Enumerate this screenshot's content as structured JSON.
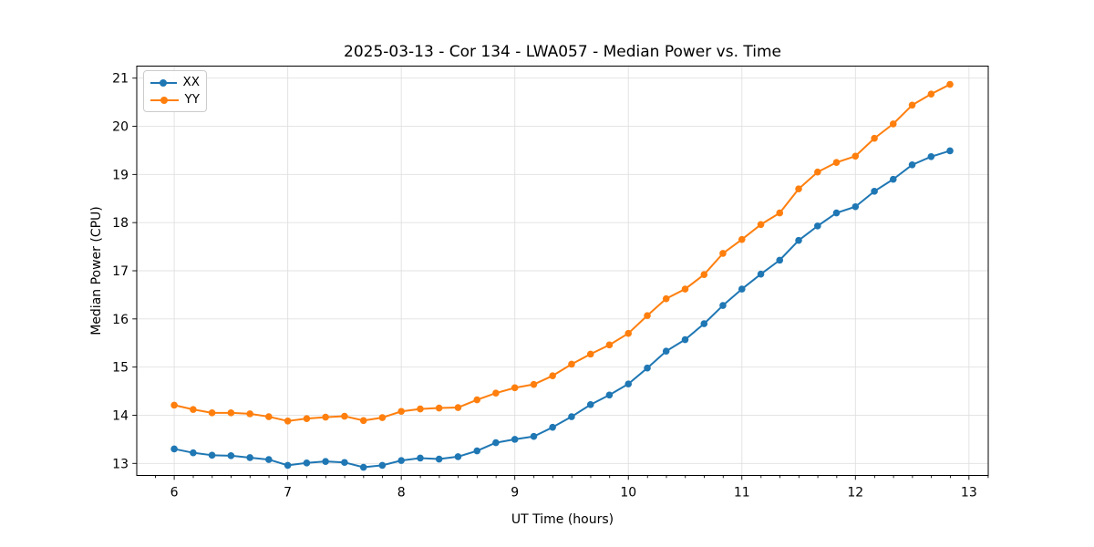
{
  "chart_data": {
    "type": "line",
    "title": "2025-03-13 - Cor 134 - LWA057 - Median Power vs. Time",
    "xlabel": "UT Time (hours)",
    "ylabel": "Median Power (CPU)",
    "xlim": [
      5.67,
      13.17
    ],
    "ylim": [
      12.75,
      21.25
    ],
    "x_ticks": [
      6,
      7,
      8,
      9,
      10,
      11,
      12,
      13
    ],
    "y_ticks": [
      13,
      14,
      15,
      16,
      17,
      18,
      19,
      20,
      21
    ],
    "x_minor_step": 0.1667,
    "grid": true,
    "legend_position": "upper-left",
    "x": [
      6.0,
      6.167,
      6.333,
      6.5,
      6.667,
      6.833,
      7.0,
      7.167,
      7.333,
      7.5,
      7.667,
      7.833,
      8.0,
      8.167,
      8.333,
      8.5,
      8.667,
      8.833,
      9.0,
      9.167,
      9.333,
      9.5,
      9.667,
      9.833,
      10.0,
      10.167,
      10.333,
      10.5,
      10.667,
      10.833,
      11.0,
      11.167,
      11.333,
      11.5,
      11.667,
      11.833,
      12.0,
      12.167,
      12.333,
      12.5,
      12.667,
      12.833
    ],
    "series": [
      {
        "name": "XX",
        "color": "#1f77b4",
        "values": [
          13.3,
          13.22,
          13.17,
          13.16,
          13.12,
          13.08,
          12.96,
          13.01,
          13.04,
          13.02,
          12.92,
          12.96,
          13.06,
          13.11,
          13.09,
          13.14,
          13.26,
          13.43,
          13.5,
          13.56,
          13.75,
          13.97,
          14.22,
          14.42,
          14.65,
          14.98,
          15.33,
          15.57,
          15.9,
          16.28,
          16.62,
          16.93,
          17.22,
          17.63,
          17.93,
          18.2,
          18.33,
          18.65,
          18.9,
          19.2,
          19.37,
          19.49
        ]
      },
      {
        "name": "YY",
        "color": "#ff7f0e",
        "values": [
          14.21,
          14.12,
          14.05,
          14.05,
          14.03,
          13.97,
          13.88,
          13.93,
          13.96,
          13.98,
          13.89,
          13.95,
          14.08,
          14.13,
          14.15,
          14.16,
          14.32,
          14.46,
          14.57,
          14.64,
          14.82,
          15.06,
          15.27,
          15.46,
          15.7,
          16.07,
          16.42,
          16.62,
          16.92,
          17.36,
          17.65,
          17.96,
          18.2,
          18.7,
          19.05,
          19.25,
          19.38,
          19.75,
          20.05,
          20.44,
          20.67,
          20.87
        ]
      }
    ]
  },
  "style": {
    "grid_color": "#e0e0e0",
    "spine_color": "#000000",
    "tick_color": "#000000",
    "background": "#ffffff"
  }
}
